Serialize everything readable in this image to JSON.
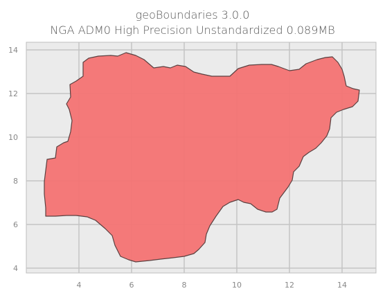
{
  "title_line1": "geoBoundaries 3.0.0",
  "title_line2": "NGA ADM0 High Precision Unstandardized 0.089MB",
  "map": {
    "x_ticks": [
      "4",
      "6",
      "8",
      "10",
      "12",
      "14"
    ],
    "y_ticks": [
      "4",
      "6",
      "8",
      "10",
      "12",
      "14"
    ],
    "grid": true,
    "fill_color": "#f47575",
    "edge_color": "#5a4040",
    "background_color": "#ebebeb"
  }
}
